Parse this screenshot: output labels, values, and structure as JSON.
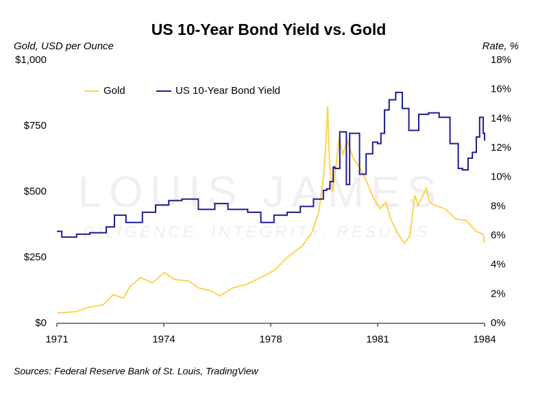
{
  "chart_data": {
    "type": "line",
    "title": "US 10-Year Bond Yield vs. Gold",
    "y_label": "Gold, USD per Ounce",
    "y2_label": "Rate, %",
    "source": "Sources: Federal Reserve Bank of St. Louis, TradingView",
    "watermark": "LOUIS JAMES",
    "watermark_tagline": "DILIGENCE. INTEGRITY. RESULTS.",
    "legend": "top-left",
    "xlim": [
      1971,
      1984
    ],
    "xticks": [
      {
        "value": 1971,
        "label": "1971"
      },
      {
        "value": 1974.25,
        "label": "1974"
      },
      {
        "value": 1977.5,
        "label": "1978"
      },
      {
        "value": 1980.75,
        "label": "1981"
      },
      {
        "value": 1984,
        "label": "1984"
      }
    ],
    "ylim": [
      0,
      1000
    ],
    "yticks": [
      {
        "value": 0,
        "label": "$0"
      },
      {
        "value": 250,
        "label": "$250"
      },
      {
        "value": 500,
        "label": "$500"
      },
      {
        "value": 750,
        "label": "$750"
      },
      {
        "value": 1000,
        "label": "$1,000"
      }
    ],
    "y2lim": [
      0,
      18
    ],
    "y2ticks": [
      {
        "value": 0,
        "label": "0%"
      },
      {
        "value": 2,
        "label": "2%"
      },
      {
        "value": 4,
        "label": "4%"
      },
      {
        "value": 6,
        "label": "6%"
      },
      {
        "value": 8,
        "label": "8%"
      },
      {
        "value": 10,
        "label": "10%"
      },
      {
        "value": 12,
        "label": "12%"
      },
      {
        "value": 14,
        "label": "14%"
      },
      {
        "value": 16,
        "label": "16%"
      },
      {
        "value": 18,
        "label": "18%"
      }
    ],
    "series": [
      {
        "name": "Gold",
        "color": "#FDD44E",
        "axis": "y",
        "x": [
          1971,
          1971.56,
          1972,
          1972.4,
          1972.71,
          1973.02,
          1973.23,
          1973.54,
          1973.9,
          1974.27,
          1974.58,
          1975,
          1975.31,
          1975.73,
          1975.94,
          1976.35,
          1976.77,
          1977.19,
          1977.6,
          1978.02,
          1978.44,
          1978.75,
          1978.96,
          1979.1,
          1979.19,
          1979.23,
          1979.29,
          1979.38,
          1979.48,
          1979.58,
          1979.69,
          1979.83,
          1980,
          1980.21,
          1980.42,
          1980.63,
          1980.83,
          1981,
          1981.15,
          1981.35,
          1981.56,
          1981.73,
          1981.88,
          1981.98,
          1982.13,
          1982.23,
          1982.33,
          1982.5,
          1982.81,
          1983.13,
          1983.44,
          1983.75,
          1983.96,
          1984
        ],
        "values": [
          39,
          44,
          62,
          70,
          109,
          96,
          141,
          174,
          154,
          193,
          167,
          161,
          135,
          122,
          104,
          135,
          148,
          174,
          200,
          253,
          292,
          344,
          422,
          552,
          708,
          825,
          604,
          500,
          591,
          708,
          643,
          695,
          630,
          591,
          539,
          474,
          435,
          461,
          396,
          344,
          305,
          331,
          487,
          448,
          487,
          513,
          461,
          448,
          435,
          396,
          391,
          349,
          339,
          305
        ]
      },
      {
        "name": "US 10-Year Bond Yield",
        "color": "#1C1C8E",
        "axis": "y2",
        "x": [
          1971,
          1971.15,
          1971.6,
          1972,
          1972.5,
          1972.75,
          1973.1,
          1973.6,
          1974,
          1974.4,
          1974.8,
          1975.3,
          1975.8,
          1976.2,
          1976.8,
          1977.2,
          1977.6,
          1978,
          1978.4,
          1978.8,
          1979.1,
          1979.2,
          1979.3,
          1979.4,
          1979.45,
          1979.6,
          1979.8,
          1979.9,
          1980.2,
          1980.4,
          1980.6,
          1980.75,
          1980.85,
          1980.96,
          1981.1,
          1981.3,
          1981.5,
          1981.7,
          1982,
          1982.3,
          1982.62,
          1982.95,
          1983.2,
          1983.33,
          1983.5,
          1983.63,
          1983.75,
          1983.85,
          1983.96,
          1984
        ],
        "values": [
          6.3,
          5.9,
          6.1,
          6.2,
          6.6,
          7.4,
          6.9,
          7.6,
          8.1,
          8.4,
          8.5,
          7.8,
          8.2,
          7.8,
          7.6,
          6.9,
          7.4,
          7.6,
          8.0,
          8.5,
          9.1,
          9.2,
          9.7,
          10.7,
          10.6,
          13.1,
          9.5,
          13.0,
          10.2,
          11.6,
          12.4,
          12.3,
          13.0,
          14.6,
          15.3,
          15.8,
          14.7,
          13.2,
          14.3,
          14.4,
          14.1,
          12.3,
          10.6,
          10.5,
          11.3,
          11.7,
          12.75,
          14.1,
          13.0,
          12.5
        ]
      }
    ]
  }
}
